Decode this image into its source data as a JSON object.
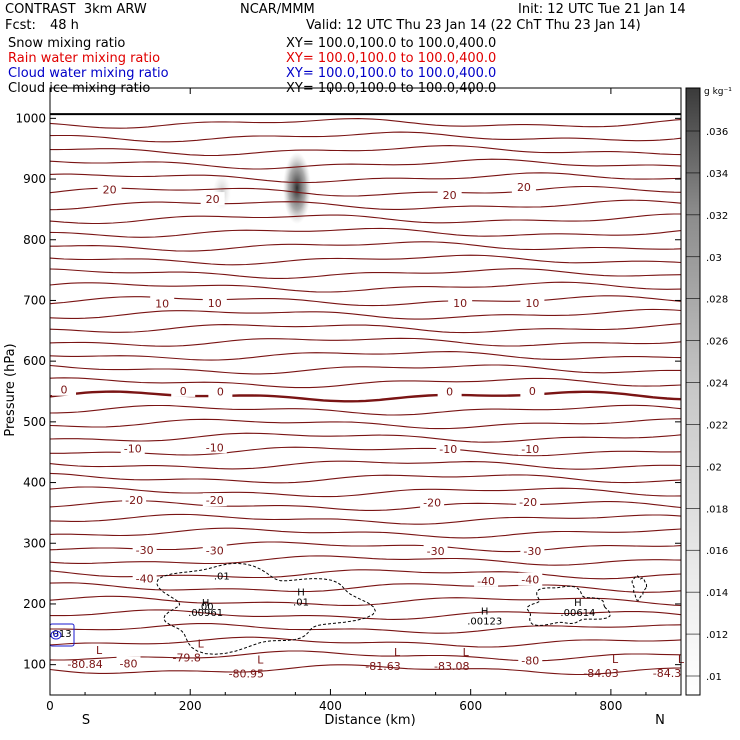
{
  "header": {
    "model": "CONTRAST  3km ARW",
    "center": "NCAR/MMM",
    "init": "Init: 12 UTC Tue 21 Jan 14",
    "fcst_label": "Fcst:",
    "fcst_value": "48 h",
    "valid": "Valid: 12 UTC Thu 23 Jan 14 (22 ChT Thu 23 Jan 14)"
  },
  "fields": [
    {
      "name": "Snow mixing ratio",
      "xy": "XY= 100.0,100.0 to 100.0,400.0",
      "color": "#000000"
    },
    {
      "name": "Rain water mixing ratio",
      "xy": "XY= 100.0,100.0 to 100.0,400.0",
      "color": "#e00000"
    },
    {
      "name": "Cloud water mixing ratio",
      "xy": "XY= 100.0,100.0 to 100.0,400.0",
      "color": "#0000c8"
    },
    {
      "name": "Cloud ice mixing ratio",
      "xy": "XY= 100.0,100.0 to 100.0,400.0",
      "color": "#000000"
    }
  ],
  "colors": {
    "temperature_contour": "#7a1414",
    "cloud_ice_contour": "#000000",
    "cloud_water_contour": "#1a1ad0"
  },
  "chart_data": {
    "type": "contour",
    "xlabel": "Distance (km)",
    "ylabel": "Pressure (hPa)",
    "xlim": [
      0,
      900
    ],
    "ylim": [
      1050,
      50
    ],
    "y_scale": "linear-inverted",
    "x_ticks": [
      "0",
      "200",
      "400",
      "600",
      "800"
    ],
    "y_ticks": [
      "100",
      "200",
      "300",
      "400",
      "500",
      "600",
      "700",
      "800",
      "900",
      "1000"
    ],
    "end_labels": {
      "left": "S",
      "right": "N"
    },
    "colorbar": {
      "unit": "g kg⁻¹",
      "ticks": [
        ".01",
        ".012",
        ".014",
        ".016",
        ".018",
        ".02",
        ".022",
        ".024",
        ".026",
        ".028",
        ".03",
        ".032",
        ".034",
        ".036"
      ]
    },
    "temperature_contour_labels": [
      {
        "text": "-80",
        "x": 112,
        "p": 102
      },
      {
        "text": "-80",
        "x": 685,
        "p": 107
      },
      {
        "text": "-40",
        "x": 135,
        "p": 242
      },
      {
        "text": "-40",
        "x": 622,
        "p": 238
      },
      {
        "text": "-40",
        "x": 685,
        "p": 240
      },
      {
        "text": "-30",
        "x": 135,
        "p": 289
      },
      {
        "text": "-30",
        "x": 235,
        "p": 288
      },
      {
        "text": "-30",
        "x": 550,
        "p": 287
      },
      {
        "text": "-30",
        "x": 688,
        "p": 287
      },
      {
        "text": "-20",
        "x": 120,
        "p": 371
      },
      {
        "text": "-20",
        "x": 235,
        "p": 371
      },
      {
        "text": "-20",
        "x": 545,
        "p": 367
      },
      {
        "text": "-20",
        "x": 682,
        "p": 368
      },
      {
        "text": "-10",
        "x": 118,
        "p": 456
      },
      {
        "text": "-10",
        "x": 235,
        "p": 458
      },
      {
        "text": "-10",
        "x": 568,
        "p": 455
      },
      {
        "text": "-10",
        "x": 685,
        "p": 455
      },
      {
        "text": "0",
        "x": 20,
        "p": 553
      },
      {
        "text": "0",
        "x": 190,
        "p": 551
      },
      {
        "text": "0",
        "x": 243,
        "p": 550
      },
      {
        "text": "0",
        "x": 570,
        "p": 550
      },
      {
        "text": "0",
        "x": 688,
        "p": 551
      },
      {
        "text": "10",
        "x": 160,
        "p": 695
      },
      {
        "text": "10",
        "x": 235,
        "p": 696
      },
      {
        "text": "10",
        "x": 585,
        "p": 696
      },
      {
        "text": "10",
        "x": 688,
        "p": 696
      },
      {
        "text": "20",
        "x": 85,
        "p": 883
      },
      {
        "text": "20",
        "x": 232,
        "p": 867
      },
      {
        "text": "20",
        "x": 570,
        "p": 874
      },
      {
        "text": "20",
        "x": 676,
        "p": 887
      }
    ],
    "lows": [
      {
        "label": "L",
        "value": "-80.84",
        "x": 50,
        "p": 108
      },
      {
        "label": "L",
        "value": "-79.8",
        "x": 195,
        "p": 118
      },
      {
        "label": "L",
        "value": "-80.95",
        "x": 280,
        "p": 92
      },
      {
        "label": "L",
        "value": "-81.63",
        "x": 475,
        "p": 104
      },
      {
        "label": "L",
        "value": "-83.08",
        "x": 573,
        "p": 104
      },
      {
        "label": "L",
        "value": "-84.03",
        "x": 786,
        "p": 93
      },
      {
        "label": "L",
        "value": "-84.3",
        "x": 880,
        "p": 93
      }
    ],
    "highs": [
      {
        "label": "H",
        "value": ".00961",
        "x": 222,
        "p": 187
      },
      {
        "label": "H",
        "value": ".01",
        "x": 358,
        "p": 204
      },
      {
        "label": "H",
        "value": ".00123",
        "x": 620,
        "p": 173
      },
      {
        "label": "H",
        "value": ".00614",
        "x": 753,
        "p": 187
      }
    ],
    "other_labels": [
      {
        "text": ".013",
        "x": 15,
        "p": 152
      },
      {
        "text": ".01",
        "x": 245,
        "p": 247
      },
      {
        "text": ".00",
        "x": 222,
        "p": 197
      }
    ]
  }
}
